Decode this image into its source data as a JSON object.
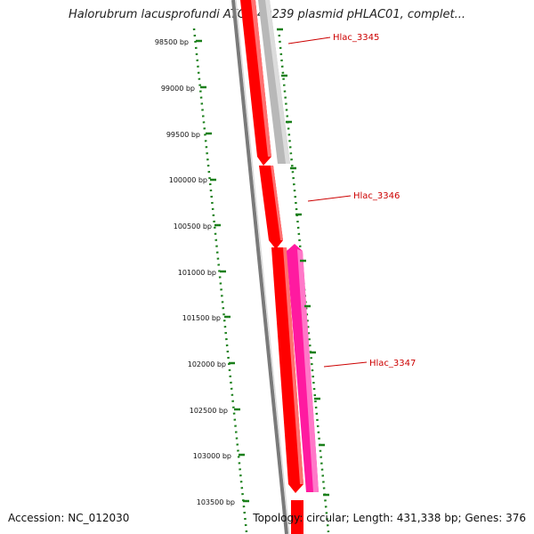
{
  "title": "Halorubrum lacusprofundi ATCC 49239 plasmid pHLAC01, complet...",
  "footer": {
    "accession": "Accession: NC_012030",
    "summary": "Topology: circular; Length: 431,338 bp; Genes: 376"
  },
  "ticks": [
    {
      "label": "98500 bp"
    },
    {
      "label": "99000 bp"
    },
    {
      "label": "99500 bp"
    },
    {
      "label": "100000 bp"
    },
    {
      "label": "100500 bp"
    },
    {
      "label": "101000 bp"
    },
    {
      "label": "101500 bp"
    },
    {
      "label": "102000 bp"
    },
    {
      "label": "102500 bp"
    },
    {
      "label": "103000 bp"
    },
    {
      "label": "103500 bp"
    }
  ],
  "genes": [
    {
      "name": "Hlac_3345",
      "strand": "reverse",
      "color": "#b8b8b8"
    },
    {
      "name": "Hlac_3346",
      "strand": "forward",
      "color": "#ff0000"
    },
    {
      "name": "Hlac_3347",
      "strand": "reverse",
      "color": "#ff1aa0"
    }
  ],
  "colors": {
    "backbone": "#7a7a7a",
    "forward_track": "#ff0000",
    "ruler": "#1a7f1a",
    "label": "#cc0000"
  }
}
